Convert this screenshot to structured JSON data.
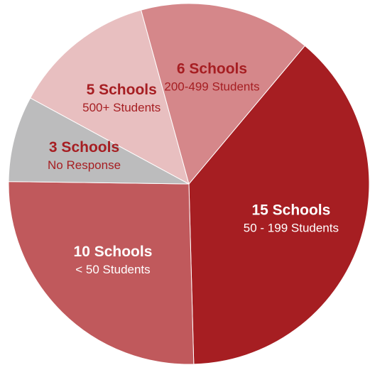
{
  "chart_data": {
    "type": "pie",
    "categories": [
      "50 - 199 Students",
      "< 50 Students",
      "No Response",
      "500+ Students",
      "200-499 Students"
    ],
    "values": [
      15,
      10,
      3,
      5,
      6
    ],
    "value_labels": [
      "15 Schools",
      "10 Schools",
      "3 Schools",
      "5 Schools",
      "6 Schools"
    ],
    "colors": [
      "#a61e22",
      "#c0595c",
      "#bcbcbd",
      "#e8bfc0",
      "#d5878a"
    ]
  }
}
